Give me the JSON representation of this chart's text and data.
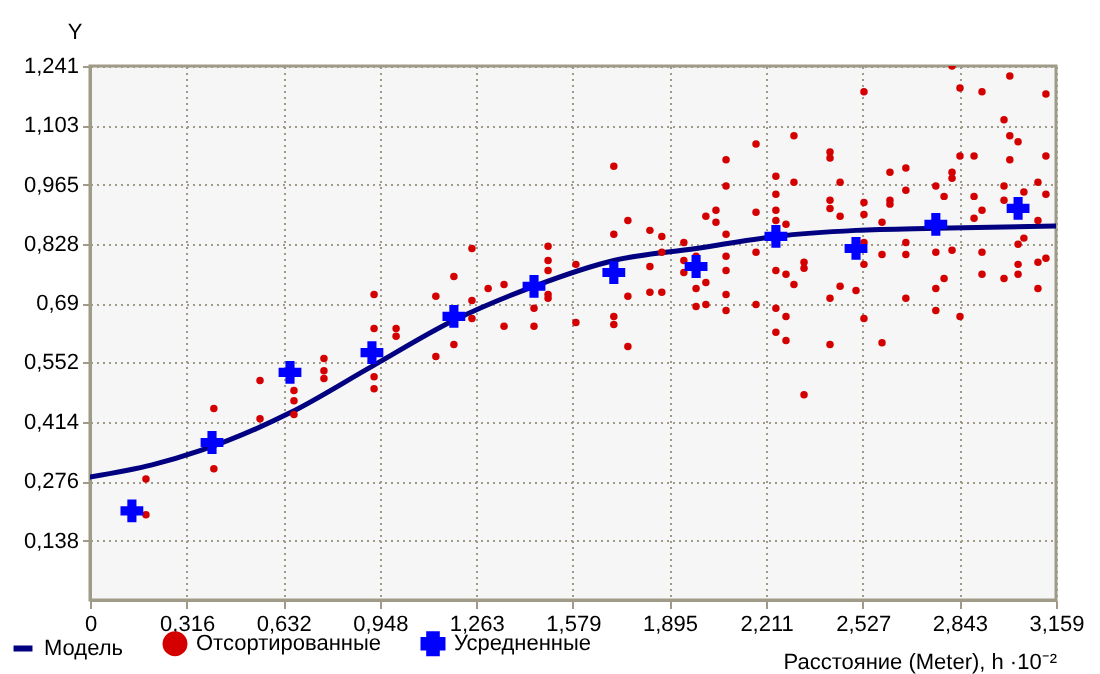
{
  "chart_data": {
    "type": "scatter",
    "xlabel": "Расстояние (Meter), h ·10⁻²",
    "ylabel": "Y",
    "xlim": [
      0,
      3.159
    ],
    "ylim": [
      0,
      1.241
    ],
    "xticks": [
      {
        "value": 0,
        "label": "0"
      },
      {
        "value": 0.316,
        "label": "0,316"
      },
      {
        "value": 0.632,
        "label": "0,632"
      },
      {
        "value": 0.948,
        "label": "0,948"
      },
      {
        "value": 1.263,
        "label": "1,263"
      },
      {
        "value": 1.579,
        "label": "1,579"
      },
      {
        "value": 1.895,
        "label": "1,895"
      },
      {
        "value": 2.211,
        "label": "2,211"
      },
      {
        "value": 2.527,
        "label": "2,527"
      },
      {
        "value": 2.843,
        "label": "2,843"
      },
      {
        "value": 3.159,
        "label": "3,159"
      }
    ],
    "yticks": [
      {
        "value": 0.138,
        "label": "0,138"
      },
      {
        "value": 0.276,
        "label": "0,276"
      },
      {
        "value": 0.414,
        "label": "0,414"
      },
      {
        "value": 0.552,
        "label": "0,552"
      },
      {
        "value": 0.69,
        "label": "0,69"
      },
      {
        "value": 0.828,
        "label": "0,828"
      },
      {
        "value": 0.965,
        "label": "0,965"
      },
      {
        "value": 1.103,
        "label": "1,103"
      },
      {
        "value": 1.241,
        "label": "1,241"
      }
    ],
    "grid": true,
    "legend": "bottom left",
    "series": [
      {
        "name": "Модель",
        "type": "line",
        "marker": "none",
        "line_style": "solid",
        "color": "#000080",
        "x": [
          0,
          0.203,
          0.36,
          0.654,
          0.922,
          1.19,
          1.452,
          1.713,
          1.982,
          2.243,
          2.505,
          2.766,
          3.159
        ],
        "values": [
          0.286,
          0.314,
          0.347,
          0.435,
          0.543,
          0.65,
          0.729,
          0.789,
          0.817,
          0.845,
          0.859,
          0.864,
          0.869
        ]
      },
      {
        "name": "Отсортированные",
        "marker": "circle",
        "color": "#d40000",
        "x": [
          0.183,
          0.183,
          0.405,
          0.405,
          0.556,
          0.556,
          0.667,
          0.667,
          0.667,
          0.765,
          0.765,
          0.765,
          0.929,
          0.929,
          0.929,
          1.001,
          1.001,
          1.131,
          1.19,
          0.929,
          1.131,
          1.19,
          1.249,
          1.249,
          1.249,
          1.302,
          1.354,
          1.354,
          1.452,
          1.452,
          1.498,
          1.498,
          1.498,
          1.498,
          1.498,
          1.589,
          1.589,
          1.713,
          1.713,
          1.713,
          1.713,
          1.759,
          1.759,
          1.831,
          1.831,
          1.831,
          1.87,
          1.87,
          1.87,
          1.942,
          1.942,
          1.942,
          1.982,
          1.982,
          1.982,
          2.014,
          2.014,
          2.014,
          2.047,
          2.047,
          2.08,
          2.08,
          2.08,
          2.08,
          2.08,
          2.08,
          2.08,
          2.178,
          2.178,
          2.178,
          2.178,
          2.243,
          2.243,
          2.243,
          2.243,
          2.243,
          2.243,
          2.243,
          2.276,
          2.276,
          2.276,
          2.302,
          2.302,
          2.302,
          2.335,
          2.335,
          2.42,
          2.42,
          2.42,
          2.42,
          2.42,
          2.453,
          2.453,
          2.453,
          2.505,
          2.531,
          2.531,
          2.531,
          2.531,
          2.531,
          2.531,
          2.59,
          2.59,
          2.616,
          2.616,
          2.616,
          2.668,
          2.668,
          2.668,
          2.668,
          2.668,
          2.766,
          2.766,
          2.766,
          2.766,
          2.793,
          2.793,
          2.819,
          2.819,
          2.819,
          2.819,
          2.845,
          2.845,
          2.845,
          2.891,
          2.891,
          2.891,
          2.917,
          2.917,
          2.917,
          2.917,
          2.989,
          2.989,
          2.989,
          2.989,
          3.008,
          3.008,
          3.008,
          3.035,
          3.035,
          3.035,
          3.035,
          3.054,
          3.054,
          3.1,
          3.1,
          3.1,
          3.1,
          3.126,
          3.126,
          3.126,
          3.126,
          1.759,
          2.276,
          2.335,
          2.42,
          2.59
        ],
        "values": [
          0.281,
          0.198,
          0.445,
          0.305,
          0.51,
          0.421,
          0.487,
          0.463,
          0.431,
          0.561,
          0.533,
          0.515,
          0.631,
          0.519,
          0.491,
          0.631,
          0.613,
          0.566,
          0.594,
          0.71,
          0.706,
          0.752,
          0.817,
          0.696,
          0.654,
          0.724,
          0.733,
          0.636,
          0.678,
          0.636,
          0.822,
          0.789,
          0.766,
          0.71,
          0.701,
          0.78,
          0.645,
          1.008,
          0.85,
          0.659,
          0.64,
          0.882,
          0.706,
          0.859,
          0.775,
          0.715,
          0.845,
          0.808,
          0.715,
          0.831,
          0.789,
          0.761,
          0.799,
          0.724,
          0.682,
          0.892,
          0.738,
          0.687,
          0.906,
          0.878,
          1.023,
          0.962,
          0.85,
          0.799,
          0.766,
          0.71,
          0.673,
          1.06,
          0.901,
          0.808,
          0.687,
          0.985,
          0.943,
          0.906,
          0.882,
          0.766,
          0.678,
          0.622,
          0.873,
          0.757,
          0.659,
          1.079,
          0.971,
          0.733,
          0.785,
          0.771,
          1.041,
          1.027,
          0.929,
          0.91,
          0.701,
          0.971,
          0.892,
          0.729,
          0.719,
          1.181,
          0.924,
          0.896,
          0.831,
          0.78,
          0.654,
          0.878,
          0.803,
          0.994,
          0.929,
          0.92,
          1.004,
          0.952,
          0.831,
          0.803,
          0.701,
          0.962,
          0.808,
          0.724,
          0.673,
          0.938,
          0.747,
          1.241,
          0.994,
          0.98,
          0.813,
          1.19,
          1.032,
          0.659,
          1.032,
          0.938,
          0.887,
          1.181,
          0.906,
          0.808,
          0.757,
          1.116,
          0.962,
          0.929,
          0.747,
          1.218,
          1.079,
          1.023,
          1.065,
          0.827,
          0.78,
          0.757,
          0.948,
          0.841,
          0.971,
          0.882,
          0.785,
          0.724,
          1.176,
          1.032,
          0.943,
          0.794,
          0.589,
          0.603,
          0.477,
          0.594,
          0.598
        ]
      },
      {
        "name": "Усредненные",
        "marker": "cross",
        "color": "#0000ff",
        "x": [
          0.137,
          0.399,
          0.654,
          0.922,
          1.19,
          1.452,
          1.713,
          1.982,
          2.243,
          2.505,
          2.766,
          3.035
        ],
        "values": [
          0.207,
          0.366,
          0.529,
          0.575,
          0.659,
          0.729,
          0.761,
          0.775,
          0.845,
          0.817,
          0.873,
          0.91
        ]
      }
    ]
  }
}
